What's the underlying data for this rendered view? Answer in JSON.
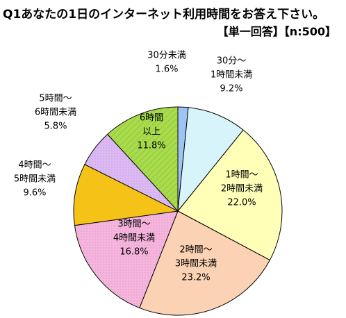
{
  "chart_data": {
    "type": "pie",
    "title": "Q1あなたの1日のインターネット利用時間をお答え下さい。",
    "subtitle": "【単一回答】【n:500】",
    "slices": [
      {
        "label": [
          "30分未満"
        ],
        "value": "1.6%",
        "pct": 1.6,
        "color": "#9ec3f5"
      },
      {
        "label": [
          "30分～",
          "1時間未満"
        ],
        "value": "9.2%",
        "pct": 9.2,
        "color": "#d8f4fb"
      },
      {
        "label": [
          "1時間～",
          "2時間未満"
        ],
        "value": "22.0%",
        "pct": 22.0,
        "color": "#ffffb8"
      },
      {
        "label": [
          "2時間～",
          "3時間未満"
        ],
        "value": "23.2%",
        "pct": 23.2,
        "color": "#fbd2b4"
      },
      {
        "label": [
          "3時間～",
          "4時間未満"
        ],
        "value": "16.8%",
        "pct": 16.8,
        "color": "#f7b4de"
      },
      {
        "label": [
          "4時間～",
          "5時間未満"
        ],
        "value": "9.6%",
        "pct": 9.6,
        "color": "#f5c318"
      },
      {
        "label": [
          "5時間～",
          "6時間未満"
        ],
        "value": "5.8%",
        "pct": 5.8,
        "color": "#dcb8f5"
      },
      {
        "label": [
          "6時間",
          "以上"
        ],
        "value": "11.8%",
        "pct": 11.8,
        "color": "#a8dc4c"
      }
    ]
  }
}
